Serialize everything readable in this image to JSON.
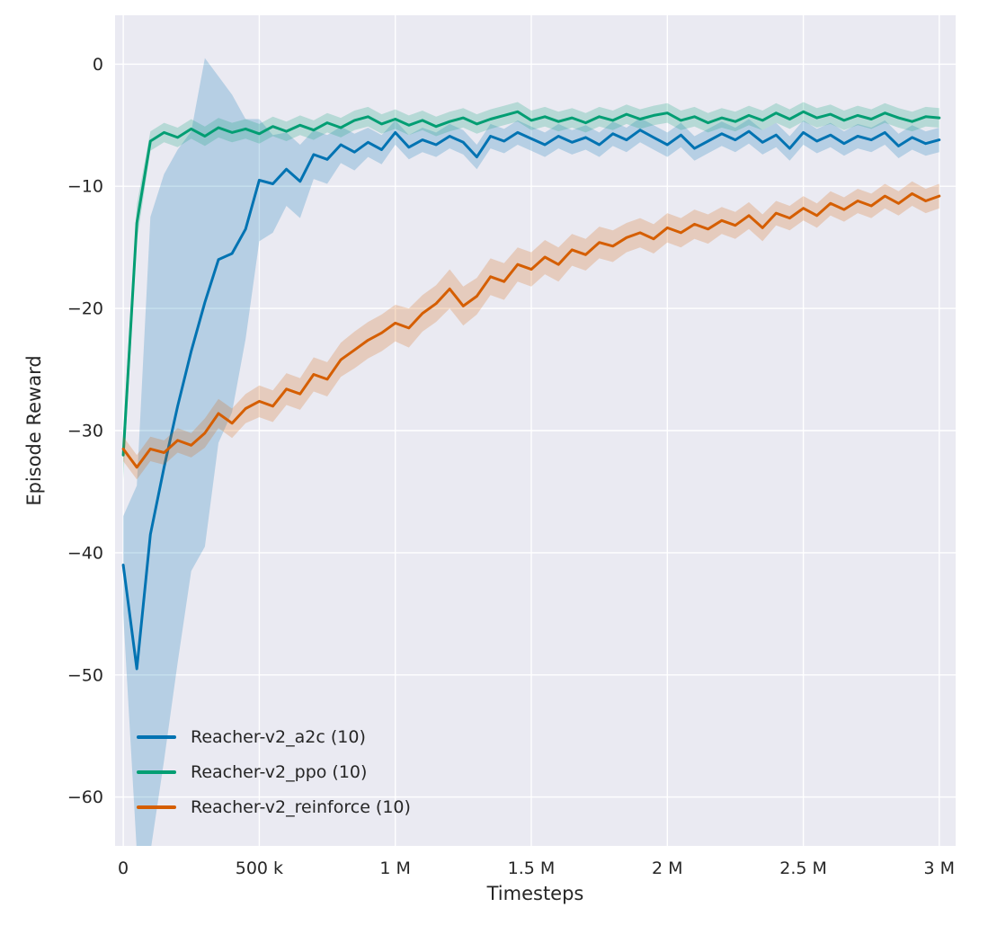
{
  "chart_data": {
    "type": "line",
    "title": "",
    "xlabel": "Timesteps",
    "ylabel": "Episode Reward",
    "xlim": [
      -30000,
      3060000
    ],
    "ylim": [
      -64,
      4
    ],
    "plot_bg": "#eaeaf2",
    "grid_color": "#ffffff",
    "grid": true,
    "legend_position": "lower left",
    "x_start": 0,
    "x_step": 50000,
    "x_ticks": [
      {
        "v": 0,
        "label": "0"
      },
      {
        "v": 500000,
        "label": "500 k"
      },
      {
        "v": 1000000,
        "label": "1 M"
      },
      {
        "v": 1500000,
        "label": "1.5 M"
      },
      {
        "v": 2000000,
        "label": "2 M"
      },
      {
        "v": 2500000,
        "label": "2.5 M"
      },
      {
        "v": 3000000,
        "label": "3 M"
      }
    ],
    "y_ticks": [
      {
        "v": 0,
        "label": "0"
      },
      {
        "v": -10,
        "label": "−10"
      },
      {
        "v": -20,
        "label": "−20"
      },
      {
        "v": -30,
        "label": "−30"
      },
      {
        "v": -40,
        "label": "−40"
      },
      {
        "v": -50,
        "label": "−50"
      },
      {
        "v": -60,
        "label": "−60"
      }
    ],
    "series": [
      {
        "key": "a2c",
        "name": "Reacher-v2_a2c (10)",
        "color": "#0173b2",
        "values": [
          -41,
          -49.5,
          -38.5,
          -33,
          -28,
          -23.5,
          -19.5,
          -16,
          -15.5,
          -13.5,
          -9.5,
          -9.8,
          -8.6,
          -9.6,
          -7.4,
          -7.8,
          -6.6,
          -7.2,
          -6.4,
          -7,
          -5.6,
          -6.8,
          -6.2,
          -6.6,
          -5.9,
          -6.4,
          -7.6,
          -5.9,
          -6.3,
          -5.6,
          -6.1,
          -6.6,
          -5.9,
          -6.4,
          -6,
          -6.6,
          -5.7,
          -6.2,
          -5.4,
          -6,
          -6.6,
          -5.8,
          -6.9,
          -6.3,
          -5.7,
          -6.2,
          -5.5,
          -6.4,
          -5.8,
          -6.9,
          -5.6,
          -6.3,
          -5.8,
          -6.5,
          -5.9,
          -6.2,
          -5.6,
          -6.7,
          -6,
          -6.5,
          -6.2
        ],
        "band": [
          4,
          15,
          26,
          24,
          21,
          18,
          20,
          15,
          13,
          9,
          5,
          4,
          3,
          3,
          2,
          2,
          1.5,
          1.5,
          1.2,
          1.2,
          1,
          1,
          1,
          1,
          1,
          1,
          1,
          1,
          1,
          1,
          1,
          1,
          1,
          1,
          1,
          1,
          1,
          1,
          1,
          1,
          1,
          1,
          1,
          1,
          1,
          1,
          1,
          1,
          1,
          1,
          1,
          1,
          1,
          1,
          1,
          1,
          1,
          1,
          1,
          1,
          1
        ]
      },
      {
        "key": "ppo",
        "name": "Reacher-v2_ppo (10)",
        "color": "#029e73",
        "values": [
          -32,
          -13,
          -6.3,
          -5.6,
          -6,
          -5.3,
          -5.9,
          -5.2,
          -5.6,
          -5.3,
          -5.7,
          -5.1,
          -5.5,
          -5,
          -5.4,
          -4.8,
          -5.2,
          -4.6,
          -4.3,
          -4.9,
          -4.5,
          -5,
          -4.6,
          -5.1,
          -4.7,
          -4.4,
          -4.9,
          -4.5,
          -4.2,
          -3.9,
          -4.6,
          -4.3,
          -4.7,
          -4.4,
          -4.8,
          -4.3,
          -4.6,
          -4.1,
          -4.5,
          -4.2,
          -4,
          -4.6,
          -4.3,
          -4.8,
          -4.4,
          -4.7,
          -4.2,
          -4.6,
          -4,
          -4.5,
          -3.9,
          -4.4,
          -4.1,
          -4.6,
          -4.2,
          -4.5,
          -4,
          -4.4,
          -4.7,
          -4.3,
          -4.4
        ],
        "band": [
          2,
          1.5,
          0.8,
          0.8,
          0.8,
          0.8,
          0.8,
          0.8,
          0.8,
          0.8,
          0.8,
          0.8,
          0.8,
          0.8,
          0.8,
          0.8,
          0.8,
          0.8,
          0.8,
          0.8,
          0.8,
          0.8,
          0.8,
          0.8,
          0.8,
          0.8,
          0.8,
          0.8,
          0.8,
          0.8,
          0.8,
          0.8,
          0.8,
          0.8,
          0.8,
          0.8,
          0.8,
          0.8,
          0.8,
          0.8,
          0.8,
          0.8,
          0.8,
          0.8,
          0.8,
          0.8,
          0.8,
          0.8,
          0.8,
          0.8,
          0.8,
          0.8,
          0.8,
          0.8,
          0.8,
          0.8,
          0.8,
          0.8,
          0.8,
          0.8,
          0.8
        ]
      },
      {
        "key": "reinforce",
        "name": "Reacher-v2_reinforce (10)",
        "color": "#d55e00",
        "values": [
          -31.5,
          -33,
          -31.5,
          -31.8,
          -30.8,
          -31.2,
          -30.2,
          -28.6,
          -29.4,
          -28.2,
          -27.6,
          -28,
          -26.6,
          -27,
          -25.4,
          -25.8,
          -24.2,
          -23.4,
          -22.6,
          -22,
          -21.2,
          -21.6,
          -20.4,
          -19.6,
          -18.4,
          -19.8,
          -19,
          -17.4,
          -17.8,
          -16.4,
          -16.8,
          -15.8,
          -16.4,
          -15.2,
          -15.6,
          -14.6,
          -14.9,
          -14.2,
          -13.8,
          -14.3,
          -13.4,
          -13.8,
          -13.1,
          -13.5,
          -12.8,
          -13.2,
          -12.4,
          -13.4,
          -12.2,
          -12.6,
          -11.8,
          -12.4,
          -11.4,
          -11.9,
          -11.2,
          -11.6,
          -10.8,
          -11.4,
          -10.6,
          -11.2,
          -10.8
        ],
        "band": [
          1,
          1,
          1,
          1,
          1,
          1,
          1.2,
          1.2,
          1.2,
          1.2,
          1.3,
          1.3,
          1.3,
          1.3,
          1.4,
          1.4,
          1.4,
          1.5,
          1.5,
          1.5,
          1.5,
          1.6,
          1.5,
          1.5,
          1.6,
          1.6,
          1.5,
          1.5,
          1.5,
          1.4,
          1.4,
          1.4,
          1.4,
          1.3,
          1.3,
          1.3,
          1.3,
          1.2,
          1.2,
          1.2,
          1.2,
          1.2,
          1.2,
          1.2,
          1.1,
          1.1,
          1.1,
          1.1,
          1,
          1,
          1,
          1,
          1,
          1,
          1,
          1,
          1,
          1,
          1,
          1,
          1
        ]
      }
    ]
  }
}
